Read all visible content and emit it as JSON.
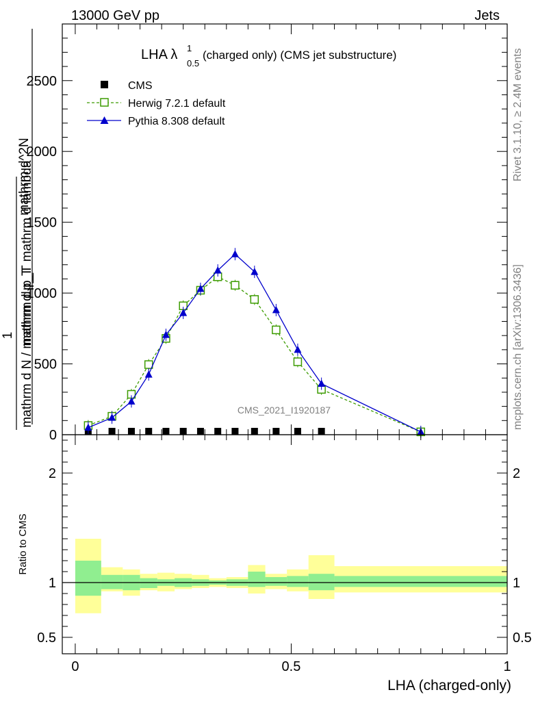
{
  "header": {
    "left": "13000 GeV pp",
    "right": "Jets",
    "side_top": "Rivet 3.1.10, ≥ 2.4M events",
    "side_bottom": "mcplots.cern.ch [arXiv:1306.3436]",
    "watermark": "CMS_2021_I1920187"
  },
  "chart_data": [
    {
      "type": "line",
      "title": "LHA λ",
      "title_sup": "1",
      "title_sub": "0.5",
      "title_rest": " (charged only) (CMS jet substructure)",
      "xlabel": "",
      "ylabel": "1 / mathrm d N / mathrm d p_T mathrm d p_T mathrm d lambda mathrm d^2 N",
      "ylabel_num": "mathrm d^2N",
      "ylabel_den": "mathrm d p_T mathrm d lambda",
      "ylabel_one": "1",
      "ylabel_norm": "mathrm d N / mathrm d p_T",
      "xlim": [
        -0.03,
        1.0
      ],
      "ylim": [
        0,
        2900
      ],
      "yticks": [
        0,
        500,
        1000,
        1500,
        2000,
        2500
      ],
      "ytick_labels": [
        "0",
        "500",
        "1000",
        "1500",
        "2000",
        "2500"
      ],
      "legend_position": "top-left",
      "series": [
        {
          "name": "CMS",
          "color": "#000000",
          "marker": "square-filled",
          "x": [
            0.03,
            0.085,
            0.13,
            0.17,
            0.21,
            0.25,
            0.29,
            0.33,
            0.37,
            0.415,
            0.465,
            0.515,
            0.57
          ],
          "y": [
            0.0,
            0.0,
            0.0,
            0.0,
            0.0,
            0.0,
            0.0,
            0.0,
            0.0,
            0.0,
            0.0,
            0.0,
            0.0
          ]
        },
        {
          "name": "Herwig 7.2.1 default",
          "color": "#3c9b00",
          "marker": "square-open",
          "dash": "dashed",
          "x": [
            0.03,
            0.085,
            0.13,
            0.17,
            0.21,
            0.25,
            0.29,
            0.33,
            0.37,
            0.415,
            0.465,
            0.515,
            0.57,
            0.8
          ],
          "y": [
            65,
            130,
            285,
            495,
            680,
            910,
            1020,
            1115,
            1055,
            955,
            740,
            515,
            320,
            20
          ]
        },
        {
          "name": "Pythia 8.308 default",
          "color": "#0000cc",
          "marker": "triangle-filled",
          "dash": "solid",
          "x": [
            0.03,
            0.085,
            0.13,
            0.17,
            0.21,
            0.25,
            0.29,
            0.33,
            0.37,
            0.415,
            0.465,
            0.515,
            0.57,
            0.8
          ],
          "y": [
            50,
            120,
            235,
            425,
            705,
            860,
            1030,
            1160,
            1275,
            1150,
            880,
            600,
            360,
            20
          ]
        }
      ]
    },
    {
      "type": "area",
      "ylabel": "Ratio to CMS",
      "xlabel": "LHA (charged-only)",
      "xlim": [
        -0.03,
        1.0
      ],
      "ylim": [
        0.35,
        2.35
      ],
      "yticks": [
        0.5,
        1,
        2
      ],
      "ytick_labels": [
        "0.5",
        "1",
        "2"
      ],
      "xtick_labels": [
        "0",
        "0.5",
        "1"
      ],
      "reference_line": 1,
      "bin_edges": [
        0.0,
        0.06,
        0.11,
        0.15,
        0.19,
        0.23,
        0.27,
        0.31,
        0.35,
        0.4,
        0.44,
        0.49,
        0.54,
        0.6,
        1.0
      ],
      "stat_band": {
        "name": "stat",
        "color": "#90ee90",
        "lower": [
          0.88,
          0.94,
          0.93,
          0.95,
          0.97,
          0.96,
          0.97,
          0.98,
          0.97,
          0.96,
          0.97,
          0.96,
          0.93,
          0.96
        ],
        "upper": [
          1.2,
          1.07,
          1.07,
          1.04,
          1.03,
          1.04,
          1.03,
          1.02,
          1.03,
          1.1,
          1.05,
          1.06,
          1.08,
          1.06
        ]
      },
      "total_band": {
        "name": "total",
        "color": "#ffff99",
        "lower": [
          0.72,
          0.92,
          0.88,
          0.93,
          0.92,
          0.94,
          0.95,
          0.96,
          0.95,
          0.9,
          0.94,
          0.92,
          0.85,
          0.91
        ],
        "upper": [
          1.4,
          1.14,
          1.12,
          1.08,
          1.09,
          1.08,
          1.07,
          1.04,
          1.05,
          1.16,
          1.08,
          1.12,
          1.25,
          1.15
        ]
      }
    }
  ]
}
